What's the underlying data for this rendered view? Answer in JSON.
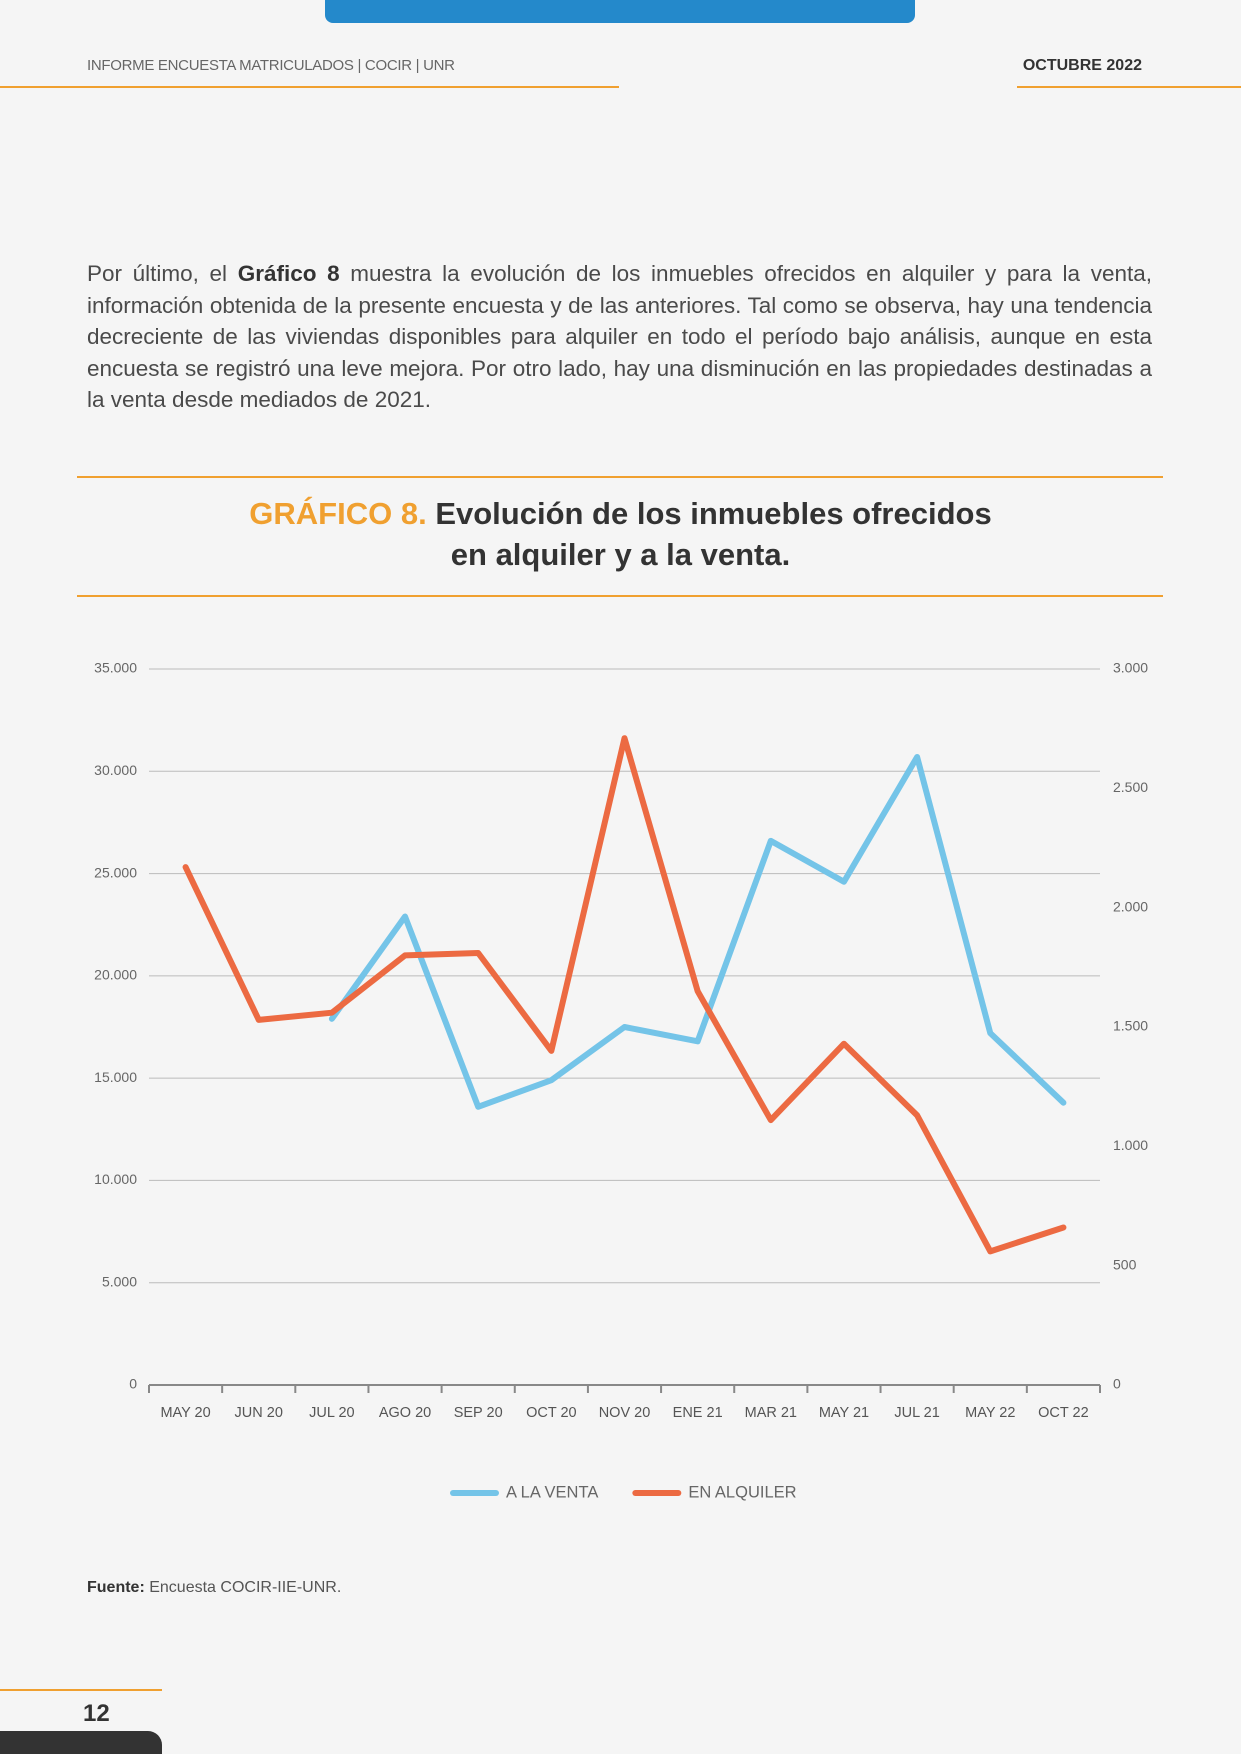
{
  "header": {
    "left": "INFORME ENCUESTA MATRICULADOS | COCIR | UNR",
    "right": "OCTUBRE 2022"
  },
  "paragraph": [
    "Por último, el ",
    "Gráfico 8",
    " muestra la evolución de los inmuebles ofrecidos en alquiler y para la venta, información obtenida de la presente encuesta y de las anteriores. Tal como se observa, hay una tendencia decreciente de las viviendas disponibles para alquiler en todo el período bajo análisis, aunque en esta encuesta se registró una leve mejora. Por otro lado, hay una disminución en las propiedades destinadas a la venta desde mediados de 2021."
  ],
  "chart_data": {
    "type": "line",
    "title_label": "GRÁFICO 8.",
    "title": "Evolución de los inmuebles ofrecidos en alquiler y a la venta.",
    "categories": [
      "MAY 20",
      "JUN 20",
      "JUL 20",
      "AGO 20",
      "SEP 20",
      "OCT 20",
      "NOV 20",
      "ENE 21",
      "MAR 21",
      "MAY 21",
      "JUL 21",
      "MAY 22",
      "OCT 22"
    ],
    "series": [
      {
        "name": "A LA VENTA",
        "color": "#74c4e8",
        "axis": "y",
        "values": [
          null,
          null,
          17900,
          22900,
          13600,
          14900,
          17500,
          16800,
          26600,
          24600,
          30700,
          17200,
          13800
        ]
      },
      {
        "name": "EN ALQUILER",
        "color": "#ec6a42",
        "axis": "y2",
        "values": [
          2170,
          1530,
          1560,
          1800,
          1810,
          1400,
          2710,
          1650,
          1110,
          1430,
          1130,
          560,
          660
        ]
      }
    ],
    "ylim": [
      0,
      35000
    ],
    "yticks": [
      0,
      {
        "value": 5000,
        "label": "5.000"
      },
      {
        "value": 10000,
        "label": "10.000"
      },
      {
        "value": 15000,
        "label": "15.000"
      },
      {
        "value": 20000,
        "label": "20.000"
      },
      {
        "value": 25000,
        "label": "25.000"
      },
      {
        "value": 30000,
        "label": "30.000"
      },
      {
        "value": 35000,
        "label": "35.000"
      }
    ],
    "y2lim": [
      0,
      3000
    ],
    "y2ticks": [
      0,
      500,
      {
        "value": 1000,
        "label": "1.000"
      },
      {
        "value": 1500,
        "label": "1.500"
      },
      {
        "value": 2000,
        "label": "2.000"
      },
      {
        "value": 2500,
        "label": "2.500"
      },
      {
        "value": 3000,
        "label": "3.000"
      }
    ],
    "grid": true,
    "legend": "bottom"
  },
  "source": {
    "label": "Fuente:",
    "text": " Encuesta COCIR-IIE-UNR."
  },
  "page_number": "12"
}
